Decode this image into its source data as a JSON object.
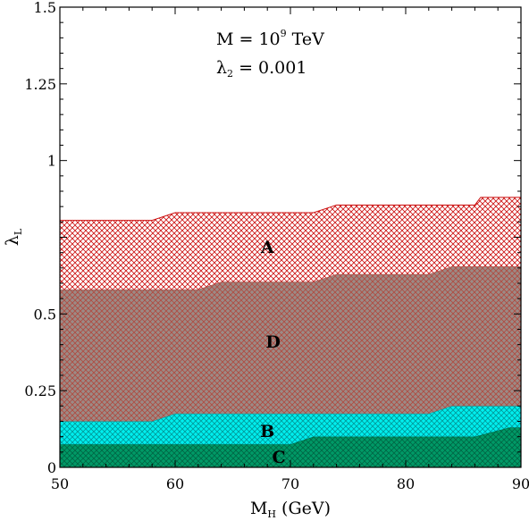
{
  "chart_data": {
    "type": "area",
    "title": "",
    "annotations": [
      {
        "text": "M = 10",
        "sup": "9",
        "rest": " TeV"
      },
      {
        "text": "λ",
        "sub": "2",
        "rest": " = 0.001"
      }
    ],
    "xlabel": {
      "main": "M",
      "sub": "H",
      "rest": " (GeV)"
    },
    "ylabel": {
      "main": "λ",
      "sub": "L"
    },
    "xlim": [
      50,
      90
    ],
    "ylim": [
      0,
      1.5
    ],
    "x_ticks": [
      50,
      60,
      70,
      80,
      90
    ],
    "x_tick_labels": [
      "50",
      "60",
      "70",
      "80",
      "90"
    ],
    "y_ticks": [
      0,
      0.25,
      0.5,
      1,
      1.25,
      1.5
    ],
    "y_tick_labels": [
      "0",
      "0.25",
      "0.5",
      "1",
      "1.25",
      "1.5"
    ],
    "grid": false,
    "regions": [
      {
        "name": "C",
        "color": "#009966",
        "hatch_color": "#006644",
        "lower": [
          [
            50,
            0
          ],
          [
            90,
            0
          ]
        ],
        "upper": [
          [
            50,
            0.075
          ],
          [
            70,
            0.075
          ],
          [
            72,
            0.1
          ],
          [
            86,
            0.1
          ],
          [
            89,
            0.13
          ],
          [
            90,
            0.13
          ]
        ],
        "label_at": [
          69,
          0.035
        ]
      },
      {
        "name": "B",
        "color": "#00eeee",
        "hatch_color": "#009999",
        "lower": [
          [
            50,
            0.075
          ],
          [
            70,
            0.075
          ],
          [
            72,
            0.1
          ],
          [
            86,
            0.1
          ],
          [
            89,
            0.13
          ],
          [
            90,
            0.13
          ]
        ],
        "upper": [
          [
            50,
            0.15
          ],
          [
            58,
            0.15
          ],
          [
            60,
            0.175
          ],
          [
            82,
            0.175
          ],
          [
            84,
            0.2
          ],
          [
            90,
            0.2
          ]
        ],
        "label_at": [
          68,
          0.12
        ]
      },
      {
        "name": "D",
        "color": "#9c8a85",
        "hatch_color": "#b04a40",
        "lower": [
          [
            50,
            0.15
          ],
          [
            58,
            0.15
          ],
          [
            60,
            0.175
          ],
          [
            82,
            0.175
          ],
          [
            84,
            0.2
          ],
          [
            90,
            0.2
          ]
        ],
        "upper": [
          [
            50,
            0.58
          ],
          [
            62,
            0.58
          ],
          [
            64,
            0.605
          ],
          [
            72,
            0.605
          ],
          [
            74,
            0.63
          ],
          [
            82,
            0.63
          ],
          [
            84,
            0.655
          ],
          [
            90,
            0.655
          ]
        ],
        "label_at": [
          68.5,
          0.41
        ]
      },
      {
        "name": "A",
        "color": "#ffffff",
        "hatch_color": "#cc1111",
        "lower": [
          [
            50,
            0.58
          ],
          [
            62,
            0.58
          ],
          [
            64,
            0.605
          ],
          [
            72,
            0.605
          ],
          [
            74,
            0.63
          ],
          [
            82,
            0.63
          ],
          [
            84,
            0.655
          ],
          [
            90,
            0.655
          ]
        ],
        "upper": [
          [
            50,
            0.805
          ],
          [
            58,
            0.805
          ],
          [
            60,
            0.83
          ],
          [
            72,
            0.83
          ],
          [
            74,
            0.855
          ],
          [
            86,
            0.855
          ],
          [
            86.5,
            0.88
          ],
          [
            90,
            0.88
          ]
        ],
        "label_at": [
          68,
          0.72
        ]
      }
    ]
  }
}
